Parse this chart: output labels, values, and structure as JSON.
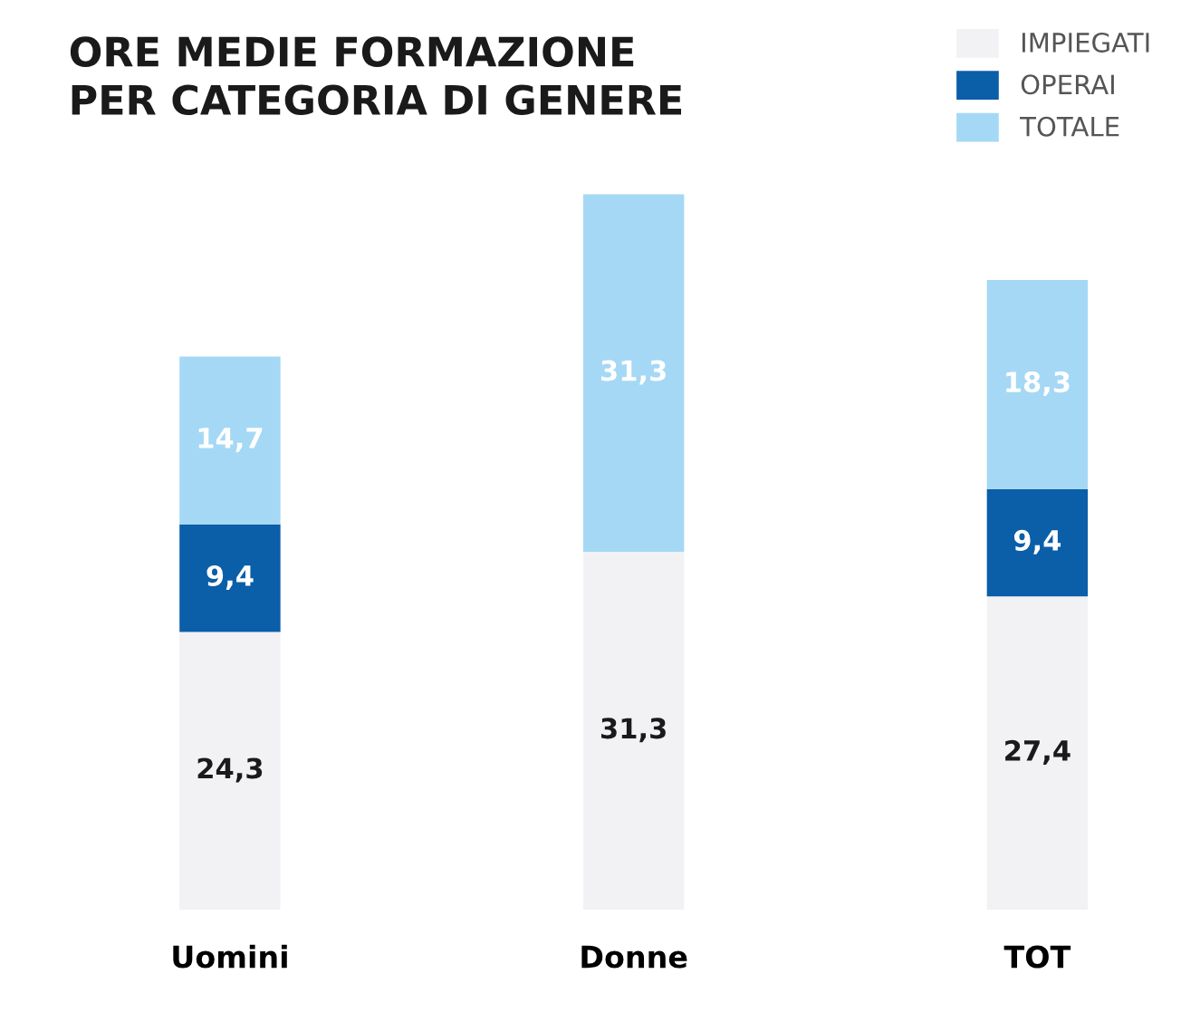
{
  "chart_data": {
    "type": "bar",
    "title": "ORE MEDIE FORMAZIONE\nPER CATEGORIA DI GENERE",
    "categories": [
      "Uomini",
      "Donne",
      "TOT"
    ],
    "stacked": true,
    "legend": "top right",
    "grid": false,
    "series": [
      {
        "name": "IMPIEGATI",
        "color": "#f2f2f4",
        "values": [
          24.3,
          31.3,
          27.4
        ],
        "value_labels": [
          "24,3",
          "31,3",
          "27,4"
        ]
      },
      {
        "name": "OPERAI",
        "color": "#0b5ea8",
        "values": [
          9.4,
          null,
          9.4
        ],
        "value_labels": [
          "9,4",
          null,
          "9,4"
        ]
      },
      {
        "name": "TOTALE",
        "color": "#a5d8f5",
        "values": [
          14.7,
          31.3,
          18.3
        ],
        "value_labels": [
          "14,7",
          "31,3",
          "18,3"
        ]
      }
    ]
  }
}
